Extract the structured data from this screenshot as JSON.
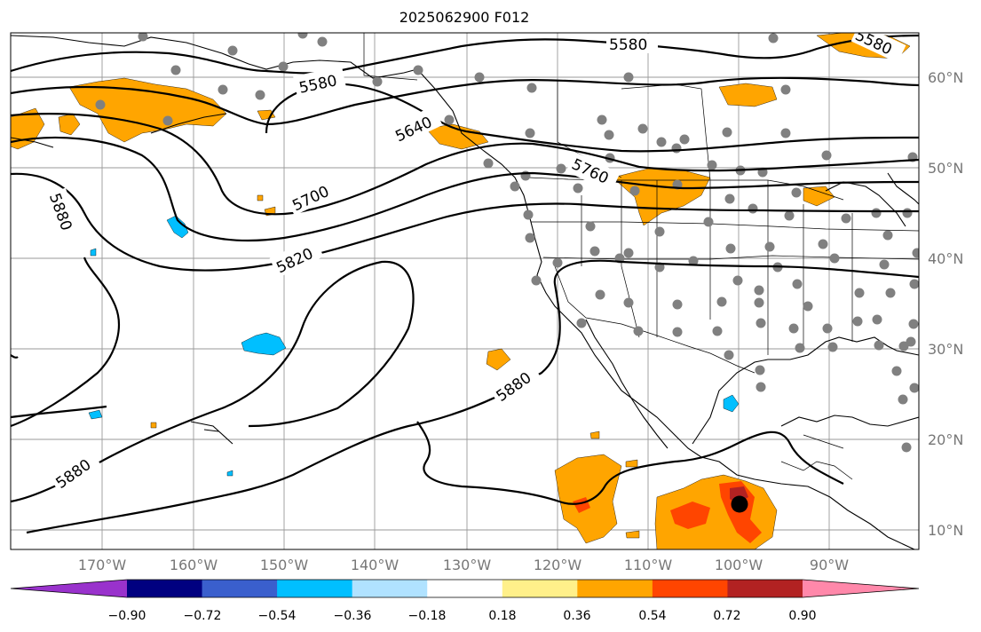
{
  "title": "2025062900 F012",
  "map": {
    "lat_ticks": [
      "60°N",
      "50°N",
      "40°N",
      "30°N",
      "20°N",
      "10°N"
    ],
    "lon_ticks": [
      "170°W",
      "160°W",
      "150°W",
      "140°W",
      "130°W",
      "120°W",
      "110°W",
      "100°W",
      "90°W"
    ],
    "contour_labels": [
      "5580",
      "5580",
      "5580",
      "5640",
      "5700",
      "5760",
      "5820",
      "5880",
      "5880",
      "5880"
    ],
    "fill_colors": {
      "orange": "#ffa500",
      "red_orange": "#ff4500",
      "dark_red": "#b22222",
      "light_blue": "#00bfff",
      "station": "#808080"
    },
    "station_marker": "station-dot",
    "storm_marker": "storm-center-dot"
  },
  "colorbar": {
    "labels": [
      "−0.90",
      "−0.72",
      "−0.54",
      "−0.36",
      "−0.18",
      "0.18",
      "0.36",
      "0.54",
      "0.72",
      "0.90"
    ],
    "colors": [
      "#9932cc",
      "#000080",
      "#3a5fcd",
      "#00bfff",
      "#b0e2ff",
      "#ffffff",
      "#fff08a",
      "#ffa500",
      "#ff4500",
      "#b22222",
      "#ff88aa"
    ]
  }
}
